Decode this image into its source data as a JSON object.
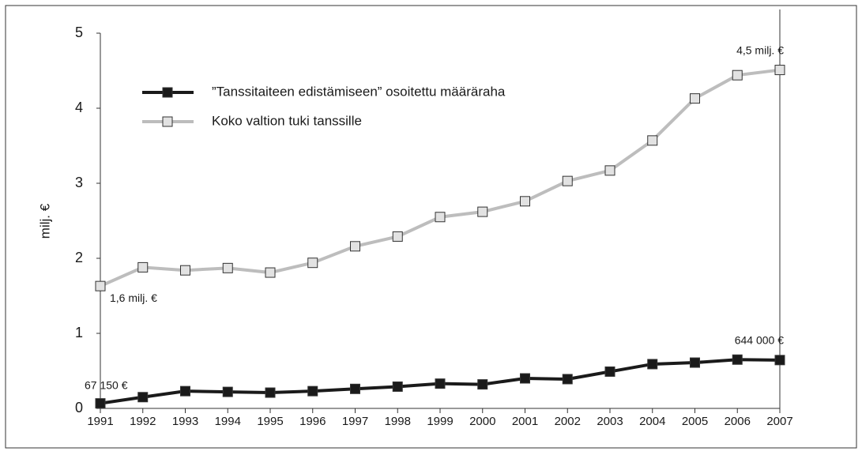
{
  "chart_data": {
    "type": "line",
    "y_label": "milj. €",
    "x": [
      1991,
      1992,
      1993,
      1994,
      1995,
      1996,
      1997,
      1998,
      1999,
      2000,
      2001,
      2002,
      2003,
      2004,
      2005,
      2006,
      2007
    ],
    "xlim": [
      1991,
      2007
    ],
    "xticks": [
      1991,
      1992,
      1993,
      1994,
      1995,
      1996,
      1997,
      1998,
      1999,
      2000,
      2001,
      2002,
      2003,
      2004,
      2005,
      2006,
      2007
    ],
    "ylim": [
      0,
      5
    ],
    "yticks": [
      0,
      1,
      2,
      3,
      4,
      5
    ],
    "legend": "upper left",
    "series": [
      {
        "name": "”Tanssitaiteen edistämiseen” osoitettu määräraha",
        "color": "#1a1a1a",
        "marker_fill": "#1a1a1a",
        "values": [
          0.06715,
          0.15,
          0.23,
          0.22,
          0.21,
          0.23,
          0.26,
          0.29,
          0.33,
          0.32,
          0.4,
          0.39,
          0.49,
          0.59,
          0.61,
          0.65,
          0.644
        ],
        "value_labels": [
          "67 150 €",
          null,
          null,
          null,
          null,
          null,
          null,
          null,
          null,
          null,
          null,
          null,
          null,
          null,
          null,
          null,
          "644 000 €"
        ]
      },
      {
        "name": "Koko valtion tuki tanssille",
        "color": "#bdbdbd",
        "marker_fill": "#e2e2e2",
        "values": [
          1.63,
          1.88,
          1.84,
          1.87,
          1.81,
          1.94,
          2.16,
          2.29,
          2.55,
          2.62,
          2.76,
          3.03,
          3.17,
          3.57,
          4.13,
          4.44,
          4.51
        ],
        "value_labels": [
          "1,6 milj. €",
          null,
          null,
          null,
          null,
          null,
          null,
          null,
          null,
          null,
          null,
          null,
          null,
          null,
          null,
          null,
          "4,5 milj. €"
        ]
      }
    ]
  }
}
